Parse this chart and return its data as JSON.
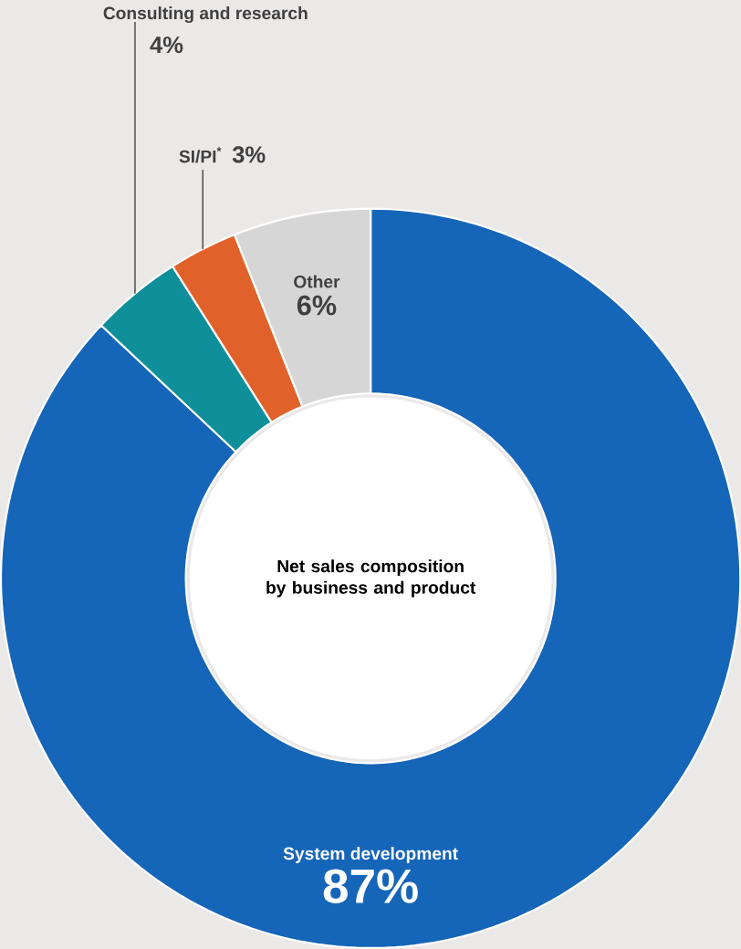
{
  "chart_data": {
    "type": "donut",
    "title": "Net sales composition by business and product",
    "categories": [
      "System development",
      "Consulting and research",
      "SI/PI$^{*}$",
      "Other"
    ],
    "values": [
      87,
      4,
      3,
      6
    ],
    "value_labels": [
      "87%",
      "4%",
      "3%",
      "6%"
    ],
    "colors": [
      "#1565b8",
      "#0f8f9a",
      "#e0622a",
      "#d6d6d6"
    ]
  }
}
